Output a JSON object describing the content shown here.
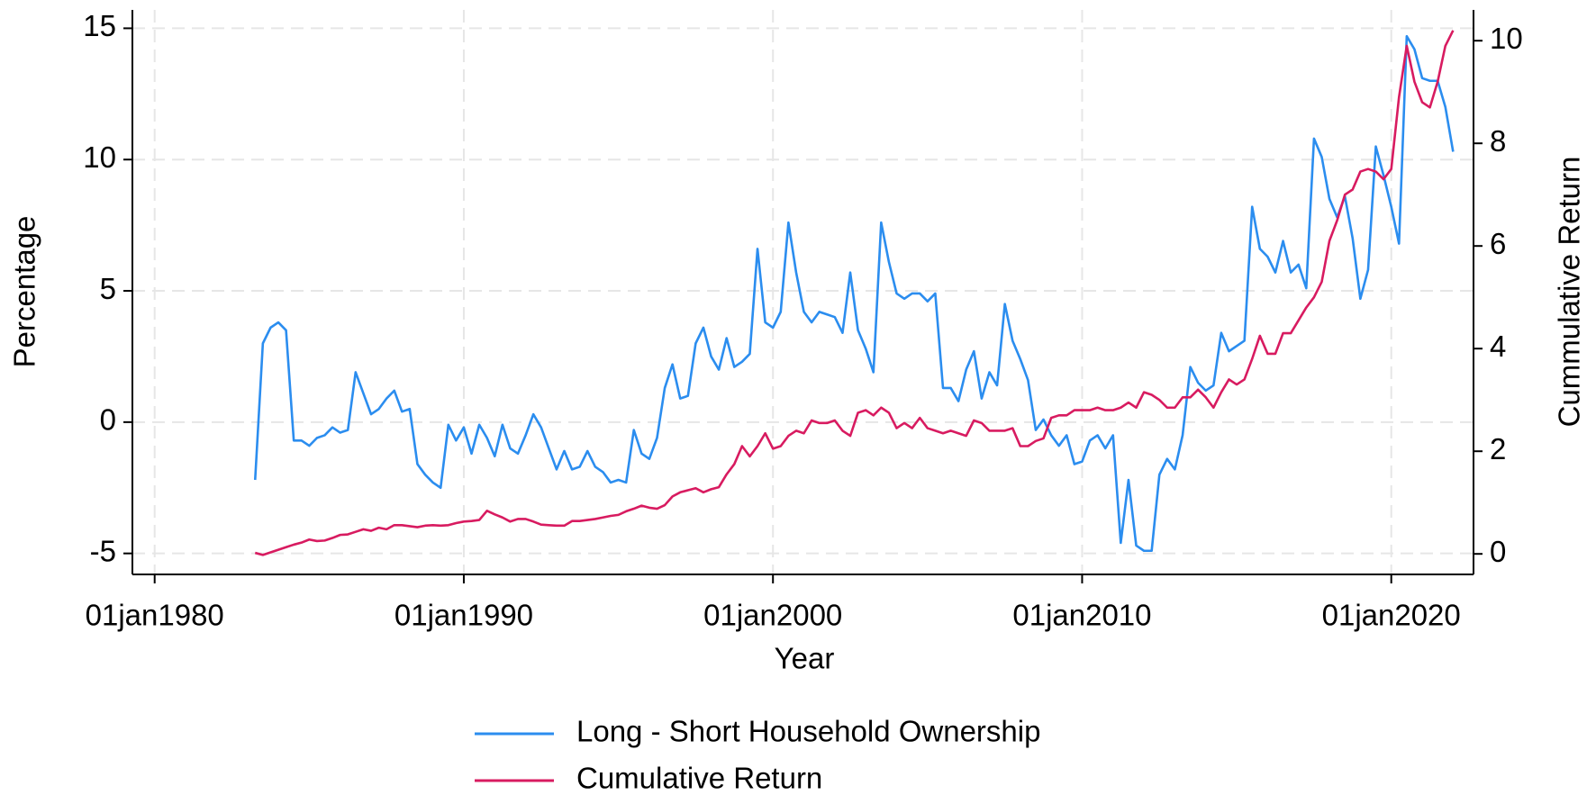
{
  "chart_data": {
    "type": "line",
    "xlabel": "Year",
    "ylabel": "Percentage",
    "y2label": "Cummulative Return",
    "x": [
      1983.25,
      1983.5,
      1983.75,
      1984,
      1984.25,
      1984.5,
      1984.75,
      1985,
      1985.25,
      1985.5,
      1985.75,
      1986,
      1986.25,
      1986.5,
      1986.75,
      1987,
      1987.25,
      1987.5,
      1987.75,
      1988,
      1988.25,
      1988.5,
      1988.75,
      1989,
      1989.25,
      1989.5,
      1989.75,
      1990,
      1990.25,
      1990.5,
      1990.75,
      1991,
      1991.25,
      1991.5,
      1991.75,
      1992,
      1992.25,
      1992.5,
      1992.75,
      1993,
      1993.25,
      1993.5,
      1993.75,
      1994,
      1994.25,
      1994.5,
      1994.75,
      1995,
      1995.25,
      1995.5,
      1995.75,
      1996,
      1996.25,
      1996.5,
      1996.75,
      1997,
      1997.25,
      1997.5,
      1997.75,
      1998,
      1998.25,
      1998.5,
      1998.75,
      1999,
      1999.25,
      1999.5,
      1999.75,
      2000,
      2000.25,
      2000.5,
      2000.75,
      2001,
      2001.25,
      2001.5,
      2001.75,
      2002,
      2002.25,
      2002.5,
      2002.75,
      2003,
      2003.25,
      2003.5,
      2003.75,
      2004,
      2004.25,
      2004.5,
      2004.75,
      2005,
      2005.25,
      2005.5,
      2005.75,
      2006,
      2006.25,
      2006.5,
      2006.75,
      2007,
      2007.25,
      2007.5,
      2007.75,
      2008,
      2008.25,
      2008.5,
      2008.75,
      2009,
      2009.25,
      2009.5,
      2009.75,
      2010,
      2010.25,
      2010.5,
      2010.75,
      2011,
      2011.25,
      2011.5,
      2011.75,
      2012,
      2012.25,
      2012.5,
      2012.75,
      2013,
      2013.25,
      2013.5,
      2013.75,
      2014,
      2014.25,
      2014.5,
      2014.75,
      2015,
      2015.25,
      2015.5,
      2015.75,
      2016,
      2016.25,
      2016.5,
      2016.75,
      2017,
      2017.25,
      2017.5,
      2017.75,
      2018,
      2018.25,
      2018.5,
      2018.75,
      2019,
      2019.25,
      2019.5,
      2019.75,
      2020,
      2020.25,
      2020.5,
      2020.75,
      2021,
      2021.25,
      2021.5,
      2021.75,
      2022
    ],
    "series": [
      {
        "name": "Long - Short Household Ownership",
        "color": "#2b8def",
        "values": [
          -2.2,
          3.0,
          3.6,
          3.8,
          3.5,
          -0.7,
          -0.7,
          -0.9,
          -0.6,
          -0.5,
          -0.2,
          -0.4,
          -0.3,
          1.9,
          1.1,
          0.3,
          0.5,
          0.9,
          1.2,
          0.4,
          0.5,
          -1.6,
          -2.0,
          -2.3,
          -2.5,
          -0.1,
          -0.7,
          -0.2,
          -1.2,
          -0.1,
          -0.6,
          -1.3,
          -0.1,
          -1.0,
          -1.2,
          -0.5,
          0.3,
          -0.2,
          -1.0,
          -1.8,
          -1.1,
          -1.8,
          -1.7,
          -1.1,
          -1.7,
          -1.9,
          -2.3,
          -2.2,
          -2.3,
          -0.3,
          -1.2,
          -1.4,
          -0.6,
          1.3,
          2.2,
          0.9,
          1.0,
          3.0,
          3.6,
          2.5,
          2.0,
          3.2,
          2.1,
          2.3,
          2.6,
          6.6,
          3.8,
          3.6,
          4.2,
          7.6,
          5.7,
          4.2,
          3.8,
          4.2,
          4.1,
          4.0,
          3.4,
          5.7,
          3.5,
          2.8,
          1.9,
          7.6,
          6.1,
          4.9,
          4.7,
          4.9,
          4.9,
          4.6,
          4.9,
          1.3,
          1.3,
          0.8,
          2.0,
          2.7,
          0.9,
          1.9,
          1.4,
          4.5,
          3.1,
          2.4,
          1.6,
          -0.3,
          0.1,
          -0.5,
          -0.9,
          -0.5,
          -1.6,
          -1.5,
          -0.7,
          -0.5,
          -1.0,
          -0.5,
          -4.6,
          -2.2,
          -4.7,
          -4.9,
          -4.9,
          -2.0,
          -1.4,
          -1.8,
          -0.5,
          2.1,
          1.5,
          1.2,
          1.4,
          3.4,
          2.7,
          2.9,
          3.1,
          8.2,
          6.6,
          6.3,
          5.7,
          6.9,
          5.7,
          6.0,
          5.1,
          10.8,
          10.1,
          8.5,
          7.8,
          8.6,
          7.0,
          4.7,
          5.8,
          10.5,
          9.4,
          8.2,
          6.8,
          14.7,
          14.2,
          13.1,
          13.0,
          13.0,
          12.0,
          10.3
        ]
      },
      {
        "name": "Cumulative Return",
        "color": "#d81b60",
        "axis": "y2",
        "values": [
          0.02,
          -0.02,
          0.03,
          0.08,
          0.13,
          0.18,
          0.22,
          0.28,
          0.25,
          0.26,
          0.31,
          0.37,
          0.38,
          0.43,
          0.48,
          0.45,
          0.51,
          0.48,
          0.56,
          0.56,
          0.54,
          0.52,
          0.55,
          0.56,
          0.55,
          0.56,
          0.6,
          0.63,
          0.64,
          0.66,
          0.84,
          0.77,
          0.71,
          0.63,
          0.68,
          0.68,
          0.63,
          0.57,
          0.56,
          0.55,
          0.55,
          0.64,
          0.64,
          0.66,
          0.68,
          0.71,
          0.74,
          0.76,
          0.83,
          0.88,
          0.94,
          0.9,
          0.88,
          0.95,
          1.12,
          1.2,
          1.24,
          1.28,
          1.2,
          1.26,
          1.3,
          1.55,
          1.75,
          2.1,
          1.9,
          2.1,
          2.35,
          2.05,
          2.1,
          2.3,
          2.4,
          2.35,
          2.6,
          2.55,
          2.55,
          2.6,
          2.4,
          2.3,
          2.75,
          2.8,
          2.7,
          2.85,
          2.75,
          2.45,
          2.55,
          2.45,
          2.65,
          2.45,
          2.4,
          2.35,
          2.4,
          2.35,
          2.3,
          2.6,
          2.55,
          2.4,
          2.4,
          2.4,
          2.45,
          2.1,
          2.1,
          2.2,
          2.25,
          2.65,
          2.7,
          2.7,
          2.8,
          2.8,
          2.8,
          2.85,
          2.8,
          2.8,
          2.85,
          2.95,
          2.85,
          3.15,
          3.1,
          3.0,
          2.85,
          2.85,
          3.05,
          3.05,
          3.2,
          3.05,
          2.85,
          3.15,
          3.4,
          3.3,
          3.4,
          3.8,
          4.25,
          3.9,
          3.9,
          4.3,
          4.3,
          4.55,
          4.8,
          5.0,
          5.3,
          6.1,
          6.5,
          7.0,
          7.1,
          7.45,
          7.5,
          7.45,
          7.3,
          7.5,
          8.9,
          9.9,
          9.2,
          8.8,
          8.7,
          9.2,
          9.9,
          10.2
        ]
      }
    ],
    "xlim": [
      1979.28,
      2022.66
    ],
    "xticks": [
      {
        "value": 1980,
        "label": "01jan1980"
      },
      {
        "value": 1990,
        "label": "01jan1990"
      },
      {
        "value": 2000,
        "label": "01jan2000"
      },
      {
        "value": 2010,
        "label": "01jan2010"
      },
      {
        "value": 2020,
        "label": "01jan2020"
      }
    ],
    "ylim": [
      -5.8,
      15.7
    ],
    "yticks": [
      -5,
      0,
      5,
      10,
      15
    ],
    "y2lim": [
      -0.4,
      10.6
    ],
    "y2ticks": [
      0,
      2,
      4,
      6,
      8,
      10
    ],
    "grid": true,
    "legend": "bottom"
  }
}
